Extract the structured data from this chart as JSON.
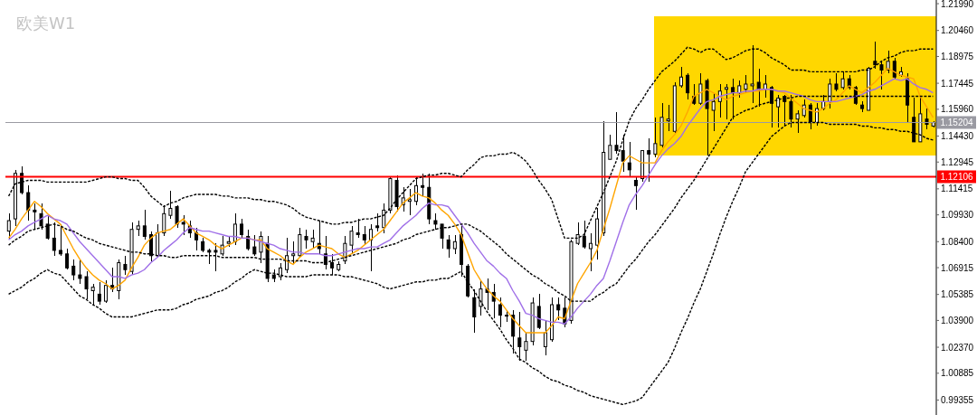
{
  "chart_data": {
    "type": "candlestick",
    "title": "欧美W1",
    "color": "#000000",
    "tick_labels": "y",
    "categories": [
      null,
      null,
      null,
      null,
      null,
      null,
      null,
      null,
      null,
      null,
      null,
      null,
      null,
      null,
      null,
      null,
      null,
      null,
      null,
      null,
      null,
      null,
      null,
      null,
      null,
      null,
      null,
      null,
      null,
      null,
      null,
      null,
      null,
      null,
      null,
      null,
      null,
      null,
      null,
      null,
      null,
      null,
      null,
      null,
      null,
      null,
      null,
      null,
      null,
      null,
      null,
      null,
      null,
      null,
      null,
      null,
      null,
      null,
      null,
      null,
      null,
      null,
      null,
      null,
      null,
      null,
      null,
      null,
      null,
      null,
      null,
      null,
      null,
      null,
      null,
      null,
      null,
      null,
      null,
      null,
      null,
      null,
      null,
      null,
      null,
      null,
      null,
      null,
      null,
      null,
      null,
      null,
      null,
      null,
      null,
      null,
      null,
      null,
      null,
      null,
      null,
      null,
      null,
      null,
      null,
      null,
      null,
      null,
      null,
      null,
      null,
      null,
      null,
      null,
      null,
      null,
      null,
      null,
      null,
      null,
      null,
      null,
      null,
      null,
      null,
      null,
      null,
      null,
      null,
      null,
      null,
      null,
      null,
      null,
      null,
      null,
      null,
      null,
      null,
      null,
      null,
      null,
      null,
      null
    ],
    "ohlc": [
      [
        1.09,
        1.1,
        1.085,
        1.096
      ],
      [
        1.097,
        1.125,
        1.093,
        1.123
      ],
      [
        1.123,
        1.127,
        1.111,
        1.112
      ],
      [
        1.112,
        1.116,
        1.096,
        1.102
      ],
      [
        1.102,
        1.106,
        1.091,
        1.101
      ],
      [
        1.1,
        1.106,
        1.091,
        1.093
      ],
      [
        1.094,
        1.099,
        1.085,
        1.086
      ],
      [
        1.086,
        1.095,
        1.076,
        1.079
      ],
      [
        1.079,
        1.094,
        1.076,
        1.077
      ],
      [
        1.077,
        1.08,
        1.068,
        1.069
      ],
      [
        1.07,
        1.074,
        1.062,
        1.065
      ],
      [
        1.065,
        1.074,
        1.06,
        1.063
      ],
      [
        1.064,
        1.067,
        1.051,
        1.057
      ],
      [
        1.056,
        1.06,
        1.048,
        1.058
      ],
      [
        1.054,
        1.061,
        1.048,
        1.05
      ],
      [
        1.05,
        1.062,
        1.049,
        1.059
      ],
      [
        1.059,
        1.069,
        1.055,
        1.057
      ],
      [
        1.056,
        1.074,
        1.051,
        1.072
      ],
      [
        1.071,
        1.076,
        1.065,
        1.068
      ],
      [
        1.067,
        1.095,
        1.065,
        1.091
      ],
      [
        1.091,
        1.096,
        1.087,
        1.093
      ],
      [
        1.093,
        1.102,
        1.085,
        1.087
      ],
      [
        1.088,
        1.09,
        1.073,
        1.076
      ],
      [
        1.076,
        1.094,
        1.075,
        1.089
      ],
      [
        1.089,
        1.105,
        1.087,
        1.1
      ],
      [
        1.099,
        1.113,
        1.097,
        1.103
      ],
      [
        1.104,
        1.105,
        1.092,
        1.094
      ],
      [
        1.095,
        1.099,
        1.088,
        1.094
      ],
      [
        1.093,
        1.096,
        1.086,
        1.089
      ],
      [
        1.089,
        1.092,
        1.079,
        1.085
      ],
      [
        1.084,
        1.086,
        1.078,
        1.079
      ],
      [
        1.079,
        1.08,
        1.071,
        1.078
      ],
      [
        1.079,
        1.083,
        1.067,
        1.078
      ],
      [
        1.077,
        1.087,
        1.076,
        1.082
      ],
      [
        1.083,
        1.087,
        1.081,
        1.084
      ],
      [
        1.084,
        1.1,
        1.082,
        1.094
      ],
      [
        1.094,
        1.097,
        1.086,
        1.088
      ],
      [
        1.087,
        1.091,
        1.079,
        1.08
      ],
      [
        1.081,
        1.088,
        1.076,
        1.077
      ],
      [
        1.078,
        1.09,
        1.072,
        1.087
      ],
      [
        1.083,
        1.087,
        1.061,
        1.063
      ],
      [
        1.065,
        1.068,
        1.061,
        1.063
      ],
      [
        1.064,
        1.072,
        1.062,
        1.069
      ],
      [
        1.068,
        1.086,
        1.066,
        1.076
      ],
      [
        1.076,
        1.084,
        1.071,
        1.077
      ],
      [
        1.076,
        1.092,
        1.075,
        1.088
      ],
      [
        1.087,
        1.091,
        1.08,
        1.085
      ],
      [
        1.084,
        1.091,
        1.08,
        1.086
      ],
      [
        1.083,
        1.096,
        1.077,
        1.08
      ],
      [
        1.077,
        1.087,
        1.068,
        1.071
      ],
      [
        1.072,
        1.077,
        1.065,
        1.069
      ],
      [
        1.068,
        1.073,
        1.067,
        1.071
      ],
      [
        1.073,
        1.087,
        1.071,
        1.083
      ],
      [
        1.082,
        1.093,
        1.077,
        1.09
      ],
      [
        1.089,
        1.097,
        1.086,
        1.088
      ],
      [
        1.088,
        1.093,
        1.082,
        1.085
      ],
      [
        1.085,
        1.094,
        1.067,
        1.091
      ],
      [
        1.093,
        1.1,
        1.09,
        1.092
      ],
      [
        1.092,
        1.106,
        1.089,
        1.102
      ],
      [
        1.102,
        1.121,
        1.1,
        1.12
      ],
      [
        1.119,
        1.122,
        1.101,
        1.104
      ],
      [
        1.105,
        1.115,
        1.101,
        1.109
      ],
      [
        1.107,
        1.114,
        1.099,
        1.108
      ],
      [
        1.107,
        1.121,
        1.105,
        1.116
      ],
      [
        1.116,
        1.123,
        1.11,
        1.115
      ],
      [
        1.115,
        1.123,
        1.094,
        1.097
      ],
      [
        1.096,
        1.1,
        1.091,
        1.094
      ],
      [
        1.094,
        1.094,
        1.08,
        1.086
      ],
      [
        1.085,
        1.088,
        1.075,
        1.08
      ],
      [
        1.08,
        1.088,
        1.077,
        1.084
      ],
      [
        1.088,
        1.094,
        1.064,
        1.071
      ],
      [
        1.07,
        1.071,
        1.052,
        1.053
      ],
      [
        1.052,
        1.057,
        1.032,
        1.041
      ],
      [
        1.047,
        1.062,
        1.042,
        1.057
      ],
      [
        1.057,
        1.063,
        1.045,
        1.055
      ],
      [
        1.055,
        1.06,
        1.04,
        1.05
      ],
      [
        1.048,
        1.052,
        1.035,
        1.042
      ],
      [
        1.042,
        1.045,
        1.038,
        1.042
      ],
      [
        1.042,
        1.045,
        1.02,
        1.03
      ],
      [
        1.029,
        1.044,
        1.016,
        1.024
      ],
      [
        1.022,
        1.032,
        1.016,
        1.027
      ],
      [
        1.027,
        1.052,
        1.025,
        1.049
      ],
      [
        1.047,
        1.054,
        1.034,
        1.035
      ],
      [
        1.024,
        1.039,
        1.019,
        1.032
      ],
      [
        1.028,
        1.052,
        1.027,
        1.048
      ],
      [
        1.048,
        1.052,
        1.039,
        1.045
      ],
      [
        1.046,
        1.052,
        1.035,
        1.037
      ],
      [
        1.039,
        1.085,
        1.037,
        1.084
      ],
      [
        1.083,
        1.095,
        1.082,
        1.088
      ],
      [
        1.087,
        1.096,
        1.08,
        1.081
      ],
      [
        1.08,
        1.089,
        1.067,
        1.083
      ],
      [
        1.082,
        1.103,
        1.074,
        1.097
      ],
      [
        1.089,
        1.153,
        1.087,
        1.135
      ],
      [
        1.131,
        1.145,
        1.131,
        1.139
      ],
      [
        1.139,
        1.158,
        1.134,
        1.136
      ],
      [
        1.136,
        1.145,
        1.124,
        1.13
      ],
      [
        1.129,
        1.141,
        1.121,
        1.125
      ],
      [
        1.119,
        1.121,
        1.102,
        1.116
      ],
      [
        1.12,
        1.136,
        1.118,
        1.136
      ],
      [
        1.136,
        1.143,
        1.118,
        1.134
      ],
      [
        1.134,
        1.155,
        1.132,
        1.14
      ],
      [
        1.139,
        1.163,
        1.138,
        1.155
      ],
      [
        1.153,
        1.162,
        1.147,
        1.154
      ],
      [
        1.147,
        1.175,
        1.146,
        1.173
      ],
      [
        1.173,
        1.184,
        1.172,
        1.178
      ],
      [
        1.179,
        1.18,
        1.165,
        1.169
      ],
      [
        1.167,
        1.174,
        1.162,
        1.163
      ],
      [
        1.163,
        1.18,
        1.162,
        1.174
      ],
      [
        1.176,
        1.177,
        1.133,
        1.16
      ],
      [
        1.159,
        1.169,
        1.147,
        1.164
      ],
      [
        1.164,
        1.174,
        1.155,
        1.17
      ],
      [
        1.171,
        1.174,
        1.154,
        1.172
      ],
      [
        1.172,
        1.177,
        1.154,
        1.169
      ],
      [
        1.169,
        1.176,
        1.166,
        1.173
      ],
      [
        1.171,
        1.179,
        1.169,
        1.174
      ],
      [
        1.173,
        1.196,
        1.163,
        1.174
      ],
      [
        1.175,
        1.183,
        1.161,
        1.171
      ],
      [
        1.171,
        1.179,
        1.166,
        1.174
      ],
      [
        1.172,
        1.173,
        1.149,
        1.163
      ],
      [
        1.161,
        1.168,
        1.149,
        1.166
      ],
      [
        1.167,
        1.168,
        1.15,
        1.164
      ],
      [
        1.164,
        1.168,
        1.149,
        1.154
      ],
      [
        1.154,
        1.159,
        1.146,
        1.157
      ],
      [
        1.156,
        1.165,
        1.155,
        1.162
      ],
      [
        1.162,
        1.163,
        1.148,
        1.152
      ],
      [
        1.152,
        1.163,
        1.15,
        1.16
      ],
      [
        1.16,
        1.168,
        1.159,
        1.164
      ],
      [
        1.164,
        1.177,
        1.16,
        1.174
      ],
      [
        1.174,
        1.18,
        1.17,
        1.171
      ],
      [
        1.172,
        1.181,
        1.171,
        1.177
      ],
      [
        1.177,
        1.179,
        1.171,
        1.172
      ],
      [
        1.172,
        1.173,
        1.162,
        1.163
      ],
      [
        1.162,
        1.164,
        1.158,
        1.16
      ],
      [
        1.159,
        1.184,
        1.159,
        1.183
      ],
      [
        1.187,
        1.198,
        1.183,
        1.185
      ],
      [
        1.185,
        1.187,
        1.171,
        1.182
      ],
      [
        1.182,
        1.193,
        1.18,
        1.187
      ],
      [
        1.187,
        1.189,
        1.177,
        1.178
      ],
      [
        1.179,
        1.184,
        1.178,
        1.181
      ],
      [
        1.177,
        1.18,
        1.152,
        1.162
      ],
      [
        1.155,
        1.166,
        1.141,
        1.141
      ],
      [
        1.141,
        1.166,
        1.141,
        1.157
      ],
      [
        1.154,
        1.16,
        1.148,
        1.151
      ],
      [
        1.15,
        1.153,
        1.149,
        1.152
      ]
    ],
    "series": [
      {
        "type": "line",
        "color": "#ffa500",
        "values": [
          1.086,
          1.091,
          1.097,
          1.102,
          1.107,
          1.104,
          1.1,
          1.097,
          1.094,
          1.087,
          1.08,
          1.074,
          1.069,
          1.065,
          1.062,
          1.06,
          1.057,
          1.059,
          1.062,
          1.069,
          1.075,
          1.082,
          1.086,
          1.089,
          1.09,
          1.091,
          1.094,
          1.097,
          1.093,
          1.089,
          1.087,
          1.085,
          1.082,
          1.08,
          1.082,
          1.084,
          1.086,
          1.086,
          1.085,
          1.085,
          1.08,
          1.078,
          1.076,
          1.073,
          1.071,
          1.075,
          1.078,
          1.08,
          1.082,
          1.081,
          1.08,
          1.077,
          1.075,
          1.077,
          1.079,
          1.082,
          1.085,
          1.088,
          1.091,
          1.096,
          1.101,
          1.106,
          1.109,
          1.112,
          1.11,
          1.109,
          1.106,
          1.102,
          1.099,
          1.094,
          1.088,
          1.078,
          1.068,
          1.062,
          1.057,
          1.053,
          1.05,
          1.045,
          1.04,
          1.036,
          1.032,
          1.032,
          1.032,
          1.032,
          1.036,
          1.041,
          1.04,
          1.05,
          1.06,
          1.066,
          1.072,
          1.079,
          1.091,
          1.103,
          1.116,
          1.129,
          1.133,
          1.131,
          1.129,
          1.129,
          1.129,
          1.136,
          1.141,
          1.145,
          1.15,
          1.158,
          1.167,
          1.169,
          1.171,
          1.169,
          1.167,
          1.165,
          1.167,
          1.168,
          1.169,
          1.17,
          1.17,
          1.171,
          1.171,
          1.17,
          1.169,
          1.166,
          1.163,
          1.16,
          1.159,
          1.158,
          1.16,
          1.163,
          1.165,
          1.169,
          1.173,
          1.171,
          1.169,
          1.172,
          1.175,
          1.179,
          1.183,
          1.181,
          1.179,
          1.178,
          1.177,
          1.167,
          1.161,
          1.155
        ]
      },
      {
        "type": "line",
        "color": "#a070e8",
        "values": [
          1.085,
          1.088,
          1.09,
          1.093,
          1.095,
          1.097,
          1.099,
          1.097,
          1.096,
          1.094,
          1.089,
          1.084,
          1.08,
          1.076,
          1.072,
          1.068,
          1.064,
          1.064,
          1.063,
          1.065,
          1.066,
          1.068,
          1.072,
          1.075,
          1.079,
          1.082,
          1.085,
          1.089,
          1.092,
          1.091,
          1.09,
          1.09,
          1.089,
          1.088,
          1.087,
          1.087,
          1.086,
          1.086,
          1.085,
          1.084,
          1.083,
          1.082,
          1.08,
          1.079,
          1.078,
          1.078,
          1.077,
          1.077,
          1.077,
          1.076,
          1.076,
          1.077,
          1.078,
          1.079,
          1.08,
          1.08,
          1.081,
          1.081,
          1.083,
          1.085,
          1.089,
          1.093,
          1.096,
          1.099,
          1.103,
          1.106,
          1.105,
          1.105,
          1.104,
          1.099,
          1.094,
          1.089,
          1.083,
          1.078,
          1.073,
          1.07,
          1.066,
          1.063,
          1.056,
          1.05,
          1.043,
          1.042,
          1.04,
          1.039,
          1.038,
          1.038,
          1.037,
          1.041,
          1.046,
          1.05,
          1.054,
          1.059,
          1.063,
          1.073,
          1.084,
          1.095,
          1.105,
          1.111,
          1.116,
          1.122,
          1.128,
          1.133,
          1.137,
          1.14,
          1.144,
          1.15,
          1.155,
          1.16,
          1.164,
          1.165,
          1.167,
          1.168,
          1.169,
          1.169,
          1.17,
          1.17,
          1.171,
          1.171,
          1.171,
          1.17,
          1.17,
          1.169,
          1.168,
          1.167,
          1.165,
          1.164,
          1.164,
          1.164,
          1.164,
          1.165,
          1.166,
          1.167,
          1.168,
          1.17,
          1.171,
          1.173,
          1.175,
          1.177,
          1.176,
          1.177,
          1.174,
          1.172,
          1.171,
          1.169
        ]
      },
      {
        "type": "line",
        "color": "#000000",
        "line_style": "dashed",
        "values": [
          1.11,
          1.117,
          1.118,
          1.119,
          1.119,
          1.119,
          1.118,
          1.118,
          1.118,
          1.118,
          1.118,
          1.118,
          1.118,
          1.119,
          1.12,
          1.121,
          1.121,
          1.12,
          1.12,
          1.119,
          1.119,
          1.115,
          1.11,
          1.107,
          1.104,
          1.106,
          1.107,
          1.109,
          1.11,
          1.111,
          1.111,
          1.111,
          1.111,
          1.11,
          1.11,
          1.109,
          1.109,
          1.109,
          1.108,
          1.108,
          1.107,
          1.107,
          1.106,
          1.105,
          1.103,
          1.1,
          1.098,
          1.097,
          1.096,
          1.095,
          1.094,
          1.094,
          1.095,
          1.095,
          1.096,
          1.097,
          1.097,
          1.098,
          1.099,
          1.103,
          1.108,
          1.112,
          1.116,
          1.12,
          1.121,
          1.122,
          1.122,
          1.123,
          1.123,
          1.122,
          1.121,
          1.125,
          1.128,
          1.132,
          1.133,
          1.133,
          1.134,
          1.134,
          1.135,
          1.133,
          1.13,
          1.125,
          1.119,
          1.114,
          1.108,
          1.097,
          1.086,
          1.086,
          1.086,
          1.088,
          1.096,
          1.104,
          1.112,
          1.121,
          1.13,
          1.142,
          1.153,
          1.16,
          1.165,
          1.171,
          1.176,
          1.181,
          1.184,
          1.187,
          1.191,
          1.195,
          1.194,
          1.192,
          1.194,
          1.194,
          1.191,
          1.188,
          1.189,
          1.191,
          1.193,
          1.194,
          1.194,
          1.192,
          1.189,
          1.187,
          1.185,
          1.182,
          1.182,
          1.182,
          1.181,
          1.181,
          1.181,
          1.181,
          1.181,
          1.181,
          1.181,
          1.181,
          1.182,
          1.182,
          1.184,
          1.187,
          1.189,
          1.19,
          1.192,
          1.193,
          1.193,
          1.194,
          1.194,
          1.194
        ]
      },
      {
        "type": "line",
        "color": "#000000",
        "line_style": "dashed",
        "values": [
          1.082,
          1.085,
          1.087,
          1.09,
          1.091,
          1.092,
          1.093,
          1.094,
          1.093,
          1.091,
          1.09,
          1.088,
          1.086,
          1.085,
          1.083,
          1.082,
          1.081,
          1.08,
          1.079,
          1.078,
          1.078,
          1.077,
          1.077,
          1.076,
          1.076,
          1.075,
          1.075,
          1.076,
          1.076,
          1.076,
          1.076,
          1.076,
          1.076,
          1.075,
          1.075,
          1.075,
          1.075,
          1.075,
          1.075,
          1.074,
          1.074,
          1.074,
          1.074,
          1.073,
          1.073,
          1.073,
          1.073,
          1.072,
          1.072,
          1.072,
          1.073,
          1.074,
          1.075,
          1.076,
          1.077,
          1.078,
          1.079,
          1.08,
          1.081,
          1.082,
          1.083,
          1.085,
          1.086,
          1.088,
          1.089,
          1.09,
          1.091,
          1.092,
          1.092,
          1.093,
          1.094,
          1.094,
          1.092,
          1.09,
          1.087,
          1.084,
          1.081,
          1.077,
          1.074,
          1.071,
          1.068,
          1.065,
          1.063,
          1.06,
          1.058,
          1.055,
          1.053,
          1.05,
          1.05,
          1.05,
          1.05,
          1.053,
          1.055,
          1.058,
          1.06,
          1.065,
          1.07,
          1.074,
          1.079,
          1.084,
          1.088,
          1.093,
          1.098,
          1.103,
          1.109,
          1.114,
          1.119,
          1.125,
          1.131,
          1.137,
          1.143,
          1.149,
          1.155,
          1.157,
          1.159,
          1.16,
          1.162,
          1.163,
          1.164,
          1.165,
          1.166,
          1.166,
          1.167,
          1.167,
          1.167,
          1.167,
          1.167,
          1.167,
          1.167,
          1.167,
          1.167,
          1.167,
          1.167,
          1.167,
          1.167,
          1.167,
          1.167,
          1.167,
          1.167,
          1.167,
          1.167,
          1.167,
          1.167,
          1.167
        ]
      },
      {
        "type": "line",
        "color": "#000000",
        "line_style": "dashed",
        "values": [
          1.054,
          1.056,
          1.058,
          1.061,
          1.063,
          1.066,
          1.068,
          1.066,
          1.065,
          1.061,
          1.057,
          1.053,
          1.051,
          1.048,
          1.046,
          1.043,
          1.041,
          1.041,
          1.041,
          1.041,
          1.042,
          1.043,
          1.044,
          1.045,
          1.045,
          1.045,
          1.046,
          1.048,
          1.049,
          1.051,
          1.052,
          1.053,
          1.055,
          1.056,
          1.058,
          1.061,
          1.063,
          1.066,
          1.068,
          1.067,
          1.066,
          1.066,
          1.065,
          1.064,
          1.064,
          1.064,
          1.064,
          1.065,
          1.065,
          1.065,
          1.065,
          1.065,
          1.064,
          1.064,
          1.063,
          1.062,
          1.061,
          1.06,
          1.058,
          1.057,
          1.058,
          1.059,
          1.06,
          1.061,
          1.061,
          1.062,
          1.062,
          1.063,
          1.063,
          1.065,
          1.067,
          1.061,
          1.056,
          1.05,
          1.044,
          1.039,
          1.034,
          1.028,
          1.023,
          1.017,
          1.015,
          1.012,
          1.01,
          1.007,
          1.005,
          1.004,
          1.002,
          1.001,
          0.999,
          0.998,
          0.996,
          0.995,
          0.994,
          0.993,
          0.992,
          0.991,
          0.992,
          0.993,
          0.995,
          1.0,
          1.005,
          1.01,
          1.015,
          1.023,
          1.032,
          1.04,
          1.049,
          1.057,
          1.067,
          1.077,
          1.088,
          1.098,
          1.107,
          1.115,
          1.124,
          1.129,
          1.134,
          1.139,
          1.144,
          1.147,
          1.15,
          1.152,
          1.152,
          1.152,
          1.152,
          1.152,
          1.152,
          1.151,
          1.151,
          1.151,
          1.151,
          1.151,
          1.15,
          1.15,
          1.149,
          1.149,
          1.148,
          1.148,
          1.147,
          1.147,
          1.146,
          1.145,
          1.143,
          1.142
        ]
      }
    ],
    "ylim": [
      0.985,
      1.222
    ],
    "yticks": [
      {
        "value": 1.2199,
        "label": "1.21990"
      },
      {
        "value": 1.2046,
        "label": "1.20460"
      },
      1.18975,
      1.17445,
      {
        "value": 1.1596,
        "label": "1.15960"
      },
      {
        "value": 1.1443,
        "label": "1.14430"
      },
      1.12945,
      1.11415,
      {
        "value": 1.0993,
        "label": "1.09930"
      },
      {
        "value": 1.084,
        "label": "1.08400"
      },
      1.06915,
      1.05385,
      {
        "value": 1.039,
        "label": "1.03900"
      },
      {
        "value": 1.0237,
        "label": "1.02370"
      },
      1.00885,
      0.99355
    ],
    "ref_lines": [
      {
        "axis": "y",
        "value": 1.15204,
        "label": "1.15204",
        "color": "#9a9aa2"
      },
      {
        "axis": "y",
        "value": 1.12106,
        "label": "1.12106",
        "color": "#ff0000"
      }
    ]
  }
}
